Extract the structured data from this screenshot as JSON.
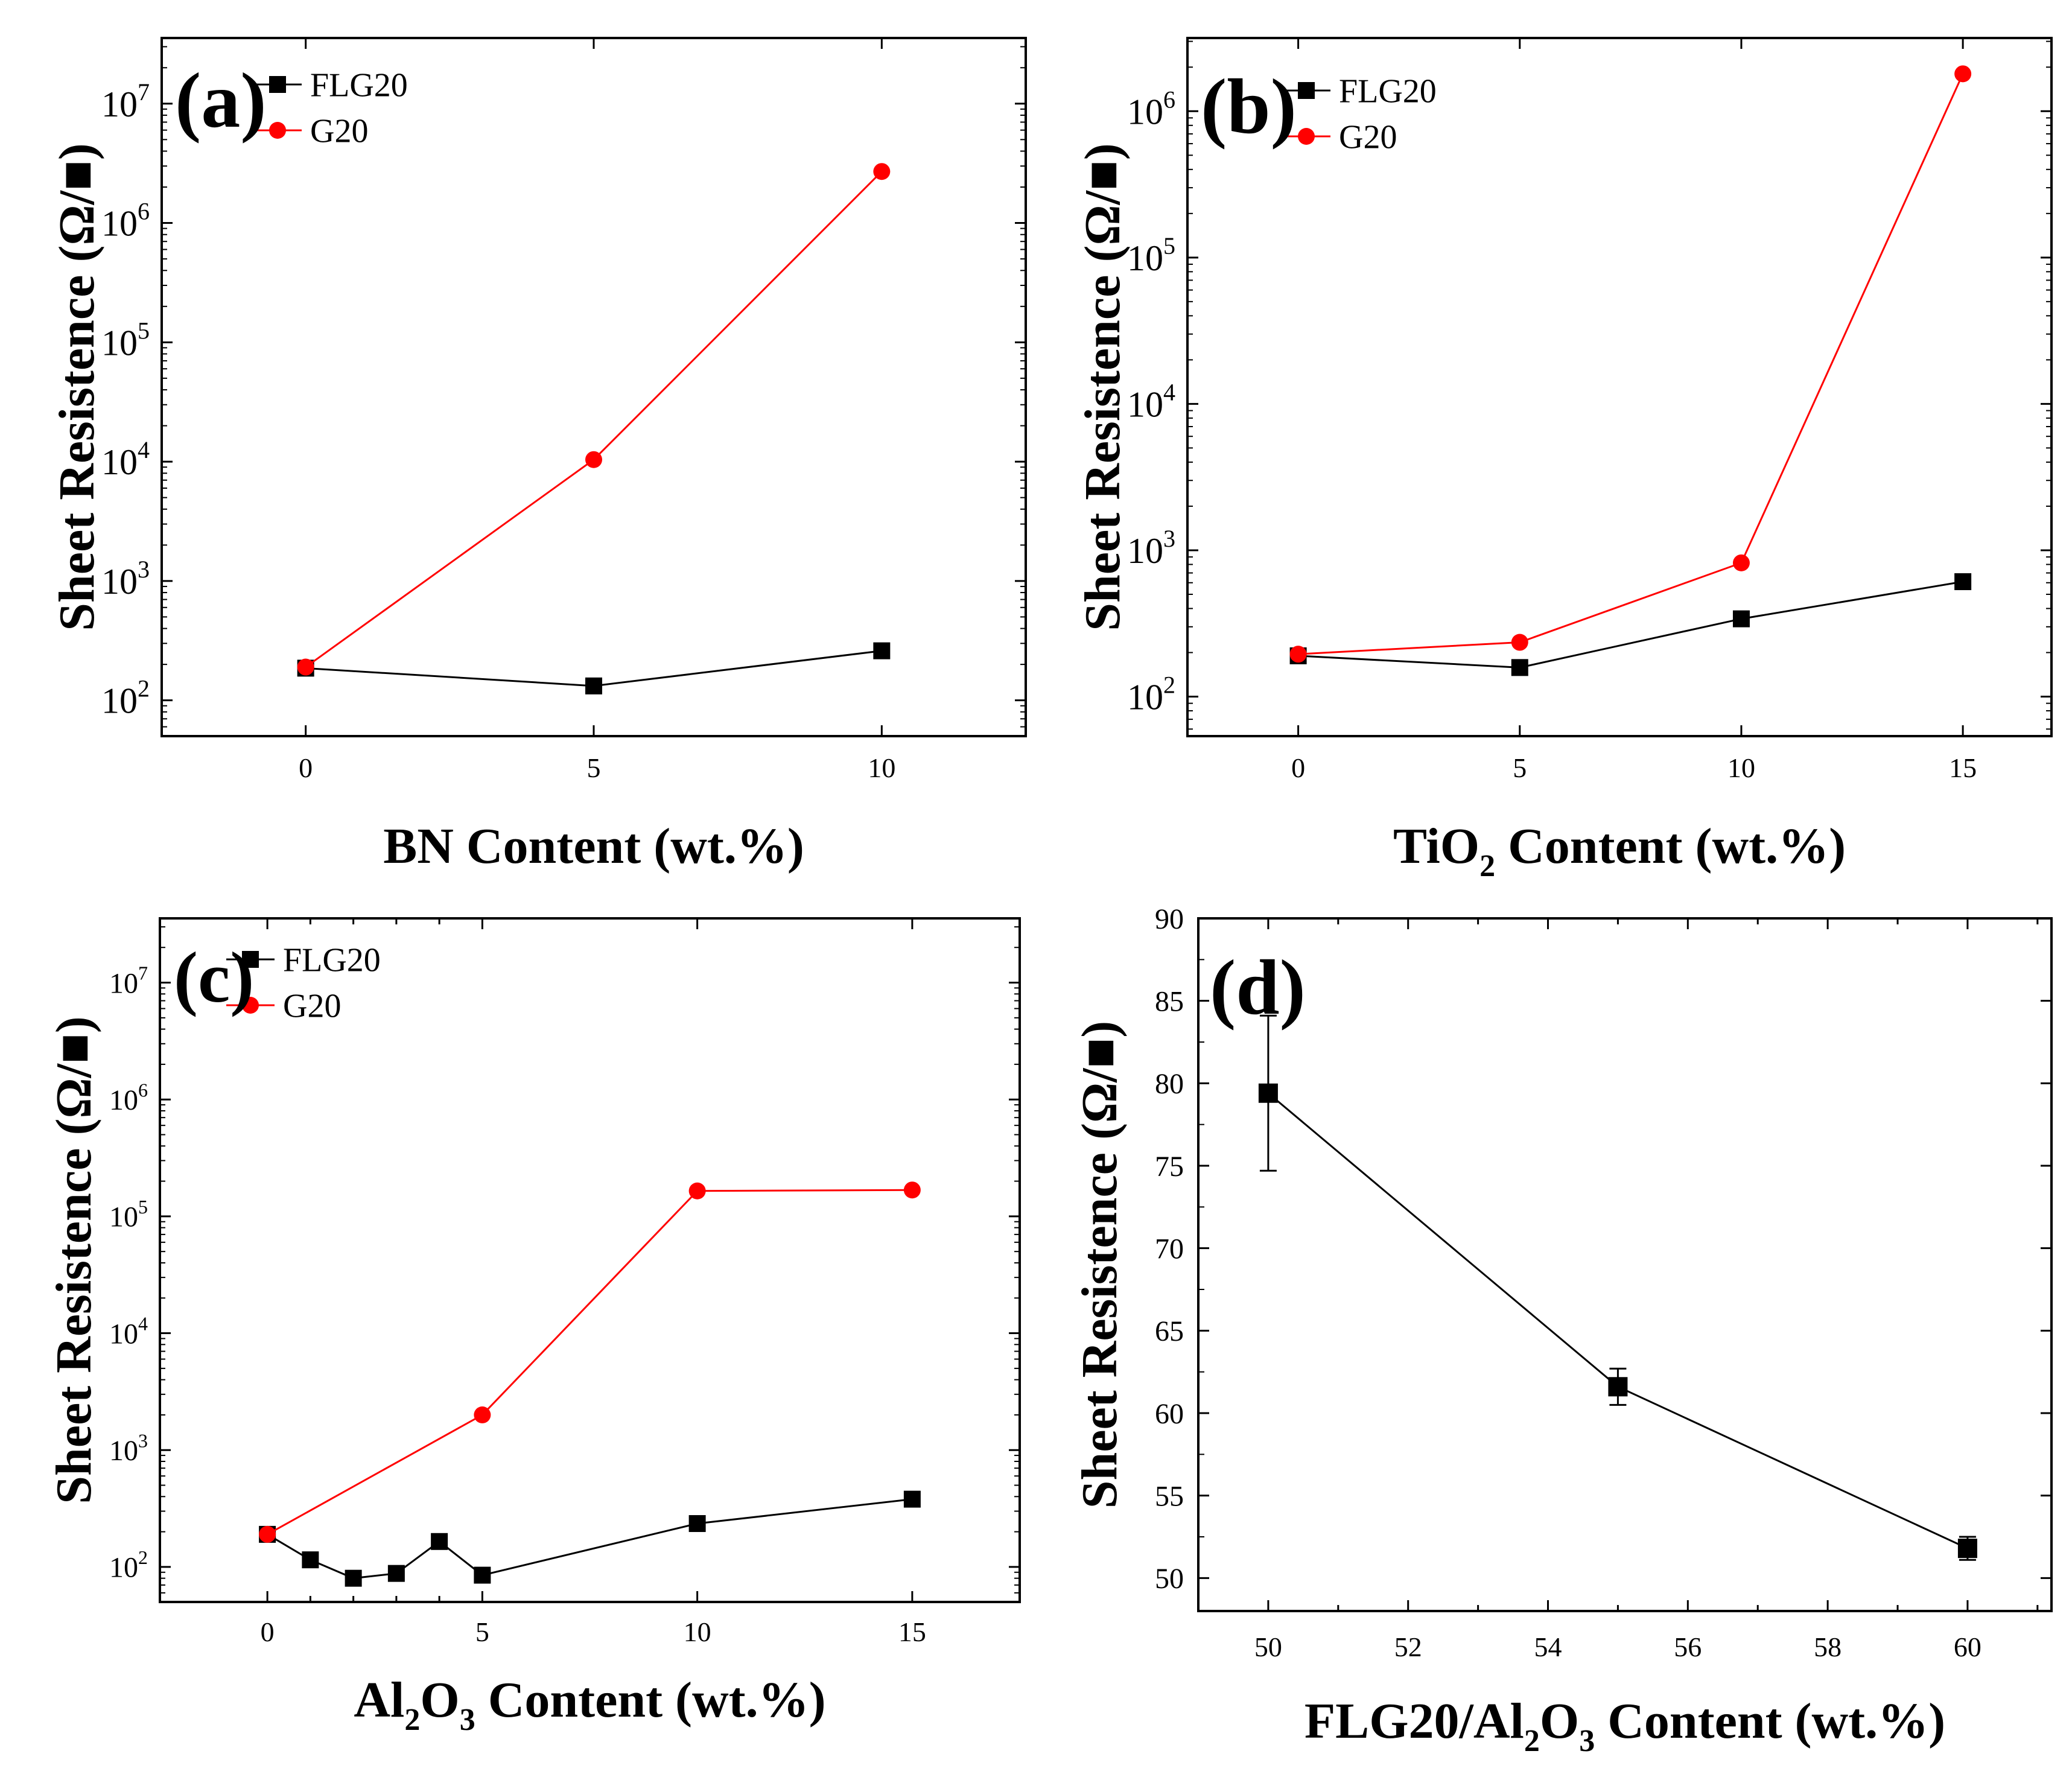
{
  "figure": {
    "colors": {
      "flg20": "#000000",
      "g20": "#ff0000"
    }
  },
  "chart_data": [
    {
      "panel_label": "(a)",
      "type": "line",
      "yscale": "log",
      "xlabel": [
        {
          "text": "BN Content (wt.%)"
        }
      ],
      "ylabel": "Sheet Resistence (Ω/■)",
      "xlim": [
        -2.5,
        12.5
      ],
      "ylim_log10": [
        1.7,
        7.55
      ],
      "x_ticks": [
        0,
        5,
        10
      ],
      "x_ticks_labeled": [
        0,
        5,
        10
      ],
      "y_tick_labels": [
        {
          "base": "10",
          "exp": "2",
          "value": 100
        },
        {
          "base": "10",
          "exp": "3",
          "value": 1000
        },
        {
          "base": "10",
          "exp": "4",
          "value": 10000
        },
        {
          "base": "10",
          "exp": "5",
          "value": 100000
        },
        {
          "base": "10",
          "exp": "6",
          "value": 1000000
        },
        {
          "base": "10",
          "exp": "7",
          "value": 10000000
        }
      ],
      "series": [
        {
          "name": "FLG20",
          "color": "#000000",
          "marker": "square",
          "x": [
            0,
            5,
            10
          ],
          "y": [
            186,
            132,
            260
          ]
        },
        {
          "name": "G20",
          "color": "#ff0000",
          "marker": "circle",
          "x": [
            0,
            5,
            10
          ],
          "y": [
            190,
            10400,
            2700000
          ]
        }
      ],
      "legend": "top-left"
    },
    {
      "panel_label": "(b)",
      "type": "line",
      "yscale": "log",
      "xlabel": [
        {
          "text": "TiO"
        },
        {
          "text": "2",
          "sub": true
        },
        {
          "text": " Content (wt.%)"
        }
      ],
      "ylabel": "Sheet Resistence (Ω/■)",
      "xlim": [
        -2.5,
        17.0
      ],
      "ylim_log10": [
        1.73,
        6.5
      ],
      "x_ticks": [
        0,
        5,
        10,
        15
      ],
      "x_ticks_labeled": [
        0,
        5,
        10,
        15
      ],
      "y_tick_labels": [
        {
          "base": "10",
          "exp": "2",
          "value": 100
        },
        {
          "base": "10",
          "exp": "3",
          "value": 1000
        },
        {
          "base": "10",
          "exp": "4",
          "value": 10000
        },
        {
          "base": "10",
          "exp": "5",
          "value": 100000
        },
        {
          "base": "10",
          "exp": "6",
          "value": 1000000
        }
      ],
      "series": [
        {
          "name": "FLG20",
          "color": "#000000",
          "marker": "square",
          "x": [
            0,
            5,
            10,
            15
          ],
          "y": [
            190,
            158,
            340,
            610
          ]
        },
        {
          "name": "G20",
          "color": "#ff0000",
          "marker": "circle",
          "x": [
            0,
            5,
            10,
            15
          ],
          "y": [
            195,
            235,
            820,
            1800000
          ]
        }
      ],
      "legend": "top-left"
    },
    {
      "panel_label": "(c)",
      "type": "line",
      "yscale": "log",
      "xlabel": [
        {
          "text": "Al"
        },
        {
          "text": "2",
          "sub": true
        },
        {
          "text": "O"
        },
        {
          "text": "3",
          "sub": true
        },
        {
          "text": " Content (wt.%)"
        }
      ],
      "ylabel": "Sheet Resistence (Ω/■)",
      "xlim": [
        -2.5,
        17.5
      ],
      "ylim_log10": [
        1.7,
        7.55
      ],
      "x_ticks": [
        0,
        1,
        2,
        3,
        4,
        5,
        10,
        15
      ],
      "x_ticks_labeled": [
        0,
        5,
        10,
        15
      ],
      "y_tick_labels": [
        {
          "base": "10",
          "exp": "2",
          "value": 100
        },
        {
          "base": "10",
          "exp": "3",
          "value": 1000
        },
        {
          "base": "10",
          "exp": "4",
          "value": 10000
        },
        {
          "base": "10",
          "exp": "5",
          "value": 100000
        },
        {
          "base": "10",
          "exp": "6",
          "value": 1000000
        },
        {
          "base": "10",
          "exp": "7",
          "value": 10000000
        }
      ],
      "series": [
        {
          "name": "FLG20",
          "color": "#000000",
          "marker": "square",
          "x": [
            0,
            1,
            2,
            3,
            4,
            5,
            10,
            15
          ],
          "y": [
            190,
            115,
            80,
            88,
            165,
            85,
            235,
            380
          ]
        },
        {
          "name": "G20",
          "color": "#ff0000",
          "marker": "circle",
          "x": [
            0,
            5,
            10,
            15
          ],
          "y": [
            190,
            2000,
            165000,
            168000
          ]
        }
      ],
      "legend": "top-left"
    },
    {
      "panel_label": "(d)",
      "type": "line",
      "yscale": "linear",
      "xlabel": [
        {
          "text": "FLG20/Al"
        },
        {
          "text": "2",
          "sub": true
        },
        {
          "text": "O"
        },
        {
          "text": "3",
          "sub": true
        },
        {
          "text": " Content (wt.%)"
        }
      ],
      "ylabel": "Sheet Resistence (Ω/■)",
      "xlim": [
        49.0,
        61.2
      ],
      "ylim": [
        48.0,
        90.0
      ],
      "x_ticks": [
        50,
        51,
        52,
        53,
        54,
        55,
        56,
        57,
        58,
        59,
        60,
        61
      ],
      "x_ticks_labeled": [
        50,
        52,
        54,
        56,
        58,
        60
      ],
      "y_ticks": [
        50,
        55,
        60,
        65,
        70,
        75,
        80,
        85,
        90
      ],
      "series": [
        {
          "name": "FLG20/Al2O3",
          "color": "#000000",
          "marker": "square",
          "x": [
            50,
            55,
            60
          ],
          "y": [
            79.4,
            61.6,
            51.8
          ],
          "yerr": [
            4.7,
            1.1,
            0.7
          ]
        }
      ]
    }
  ]
}
